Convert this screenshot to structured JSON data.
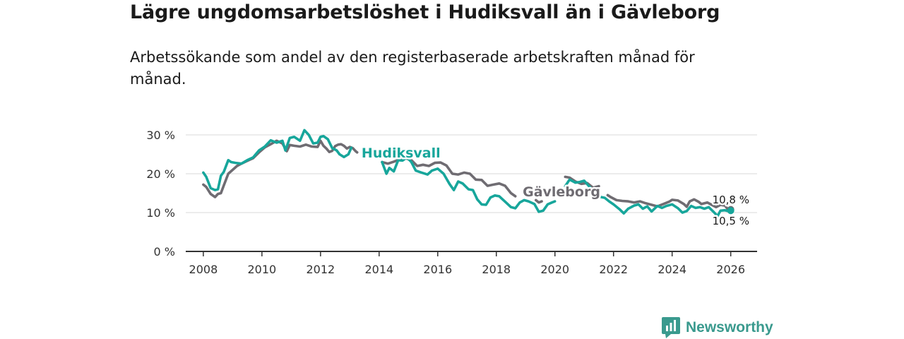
{
  "page": {
    "title": "Lägre ungdomsarbetslöshet i Hudiksvall än i Gävleborg",
    "subtitle": "Arbetssökande som andel av den registerbaserade arbetskraften månad för månad.",
    "brand": "Newsworthy"
  },
  "colors": {
    "hudiksvall": "#17a69b",
    "gavleborg": "#6f6c72",
    "grid": "#d9d9d9",
    "axis": "#333333"
  },
  "chart_data": {
    "type": "line",
    "title": "Lägre ungdomsarbetslöshet i Hudiksvall än i Gävleborg",
    "subtitle": "Arbetssökande som andel av den registerbaserade arbetskraften månad för månad.",
    "xlabel": "",
    "ylabel": "",
    "xlim": [
      2007.4,
      2026.9
    ],
    "ylim": [
      0,
      30
    ],
    "grid": "horizontal",
    "y_ticks": [
      {
        "value": 0,
        "label": "0 %"
      },
      {
        "value": 10,
        "label": "10 %"
      },
      {
        "value": 20,
        "label": "20 %"
      },
      {
        "value": 30,
        "label": "30 %"
      }
    ],
    "x_ticks": [
      {
        "value": 2008,
        "label": "2008"
      },
      {
        "value": 2010,
        "label": "2010"
      },
      {
        "value": 2012,
        "label": "2012"
      },
      {
        "value": 2014,
        "label": "2014"
      },
      {
        "value": 2016,
        "label": "2016"
      },
      {
        "value": 2018,
        "label": "2018"
      },
      {
        "value": 2020,
        "label": "2020"
      },
      {
        "value": 2022,
        "label": "2022"
      },
      {
        "value": 2024,
        "label": "2024"
      },
      {
        "value": 2026,
        "label": "2026"
      }
    ],
    "series": [
      {
        "name": "Gävleborg",
        "label": "Gävleborg",
        "end_label": "10,8 %",
        "segments": [
          [
            [
              2008.0,
              17.2
            ],
            [
              2008.1,
              16.6
            ],
            [
              2008.25,
              14.8
            ],
            [
              2008.4,
              14.0
            ],
            [
              2008.5,
              14.8
            ],
            [
              2008.6,
              15.0
            ],
            [
              2008.7,
              17.0
            ],
            [
              2008.85,
              20.0
            ],
            [
              2009.0,
              21.0
            ],
            [
              2009.15,
              22.0
            ],
            [
              2009.3,
              22.6
            ],
            [
              2009.5,
              23.3
            ],
            [
              2009.7,
              24.0
            ],
            [
              2009.9,
              25.5
            ],
            [
              2010.1,
              26.8
            ],
            [
              2010.3,
              27.6
            ],
            [
              2010.5,
              28.5
            ],
            [
              2010.7,
              27.8
            ],
            [
              2010.85,
              25.8
            ],
            [
              2010.95,
              27.4
            ],
            [
              2011.1,
              27.2
            ],
            [
              2011.3,
              27.0
            ],
            [
              2011.5,
              27.5
            ],
            [
              2011.7,
              27.0
            ],
            [
              2011.9,
              26.9
            ],
            [
              2012.0,
              28.5
            ],
            [
              2012.1,
              27.2
            ],
            [
              2012.2,
              26.5
            ],
            [
              2012.3,
              25.6
            ],
            [
              2012.4,
              25.9
            ],
            [
              2012.5,
              27.1
            ],
            [
              2012.6,
              27.5
            ],
            [
              2012.7,
              27.6
            ],
            [
              2012.8,
              27.2
            ],
            [
              2012.9,
              26.5
            ],
            [
              2013.0,
              26.9
            ],
            [
              2013.1,
              26.6
            ],
            [
              2013.2,
              25.8
            ],
            [
              2013.25,
              25.5
            ]
          ],
          [
            [
              2014.1,
              23.0
            ],
            [
              2014.3,
              22.6
            ],
            [
              2014.5,
              23.1
            ],
            [
              2014.7,
              23.7
            ],
            [
              2014.9,
              24.0
            ],
            [
              2015.1,
              23.5
            ],
            [
              2015.3,
              22.0
            ],
            [
              2015.5,
              22.3
            ],
            [
              2015.7,
              22.0
            ],
            [
              2015.9,
              22.8
            ],
            [
              2016.1,
              22.9
            ],
            [
              2016.3,
              22.1
            ],
            [
              2016.5,
              20.0
            ],
            [
              2016.7,
              19.8
            ],
            [
              2016.9,
              20.3
            ],
            [
              2017.1,
              20.0
            ],
            [
              2017.3,
              18.5
            ],
            [
              2017.5,
              18.4
            ],
            [
              2017.7,
              16.9
            ],
            [
              2017.9,
              17.2
            ],
            [
              2018.1,
              17.5
            ],
            [
              2018.3,
              16.9
            ],
            [
              2018.5,
              15.0
            ],
            [
              2018.65,
              14.2
            ]
          ],
          [
            [
              2019.35,
              13.2
            ],
            [
              2019.45,
              12.6
            ],
            [
              2019.55,
              12.9
            ]
          ],
          [
            [
              2020.35,
              19.2
            ],
            [
              2020.5,
              19.0
            ],
            [
              2020.7,
              18.0
            ],
            [
              2020.9,
              17.4
            ],
            [
              2021.1,
              17.6
            ],
            [
              2021.3,
              16.4
            ],
            [
              2021.5,
              16.8
            ]
          ],
          [
            [
              2021.8,
              14.5
            ],
            [
              2021.9,
              14.0
            ],
            [
              2022.1,
              13.2
            ],
            [
              2022.3,
              13.0
            ],
            [
              2022.5,
              12.9
            ],
            [
              2022.7,
              12.6
            ],
            [
              2022.9,
              12.9
            ],
            [
              2023.1,
              12.4
            ],
            [
              2023.3,
              12.0
            ],
            [
              2023.5,
              11.6
            ],
            [
              2023.7,
              12.2
            ],
            [
              2023.9,
              12.8
            ],
            [
              2024.0,
              13.3
            ],
            [
              2024.2,
              13.1
            ],
            [
              2024.4,
              12.2
            ],
            [
              2024.5,
              11.5
            ],
            [
              2024.6,
              12.9
            ],
            [
              2024.75,
              13.4
            ],
            [
              2024.9,
              12.8
            ],
            [
              2025.0,
              12.2
            ],
            [
              2025.2,
              12.6
            ],
            [
              2025.35,
              12.0
            ],
            [
              2025.5,
              11.4
            ],
            [
              2025.65,
              12.0
            ],
            [
              2025.8,
              11.8
            ],
            [
              2025.9,
              10.9
            ],
            [
              2026.0,
              10.8
            ]
          ]
        ]
      },
      {
        "name": "Hudiksvall",
        "label": "Hudiksvall",
        "end_label": "10,5 %",
        "segments": [
          [
            [
              2008.0,
              20.3
            ],
            [
              2008.1,
              19.2
            ],
            [
              2008.25,
              16.3
            ],
            [
              2008.4,
              15.8
            ],
            [
              2008.5,
              16.0
            ],
            [
              2008.6,
              19.5
            ],
            [
              2008.7,
              20.5
            ],
            [
              2008.85,
              23.5
            ],
            [
              2008.95,
              23.0
            ],
            [
              2009.1,
              22.8
            ],
            [
              2009.3,
              22.6
            ],
            [
              2009.5,
              23.5
            ],
            [
              2009.7,
              24.2
            ],
            [
              2009.9,
              26.0
            ],
            [
              2010.1,
              27.0
            ],
            [
              2010.3,
              28.6
            ],
            [
              2010.5,
              28.0
            ],
            [
              2010.7,
              28.5
            ],
            [
              2010.8,
              26.0
            ],
            [
              2010.95,
              29.2
            ],
            [
              2011.1,
              29.5
            ],
            [
              2011.3,
              28.5
            ],
            [
              2011.45,
              31.2
            ],
            [
              2011.6,
              30.0
            ],
            [
              2011.75,
              27.8
            ],
            [
              2011.9,
              28.0
            ],
            [
              2012.0,
              29.5
            ],
            [
              2012.1,
              29.7
            ],
            [
              2012.25,
              28.9
            ],
            [
              2012.4,
              26.6
            ],
            [
              2012.55,
              26.0
            ],
            [
              2012.65,
              25.0
            ],
            [
              2012.8,
              24.3
            ],
            [
              2012.95,
              25.0
            ],
            [
              2013.05,
              26.7
            ]
          ],
          [
            [
              2014.1,
              23.0
            ],
            [
              2014.25,
              20.0
            ],
            [
              2014.35,
              21.5
            ],
            [
              2014.5,
              20.6
            ],
            [
              2014.65,
              23.5
            ],
            [
              2014.8,
              23.4
            ],
            [
              2014.95,
              24.2
            ],
            [
              2015.1,
              23.0
            ],
            [
              2015.25,
              20.8
            ],
            [
              2015.45,
              20.3
            ],
            [
              2015.65,
              19.8
            ],
            [
              2015.8,
              20.8
            ],
            [
              2016.0,
              21.3
            ],
            [
              2016.2,
              20.0
            ],
            [
              2016.4,
              17.4
            ],
            [
              2016.55,
              15.8
            ],
            [
              2016.7,
              18.0
            ],
            [
              2016.85,
              17.5
            ],
            [
              2017.05,
              16.0
            ],
            [
              2017.2,
              15.8
            ],
            [
              2017.35,
              13.4
            ],
            [
              2017.5,
              12.1
            ],
            [
              2017.65,
              12.0
            ],
            [
              2017.8,
              13.9
            ],
            [
              2017.95,
              14.4
            ],
            [
              2018.1,
              14.2
            ],
            [
              2018.3,
              12.8
            ],
            [
              2018.5,
              11.4
            ],
            [
              2018.65,
              11.1
            ],
            [
              2018.8,
              12.6
            ],
            [
              2018.95,
              13.2
            ],
            [
              2019.1,
              12.9
            ],
            [
              2019.3,
              12.2
            ],
            [
              2019.45,
              10.2
            ],
            [
              2019.6,
              10.5
            ],
            [
              2019.75,
              12.1
            ],
            [
              2019.9,
              12.6
            ],
            [
              2020.0,
              12.9
            ]
          ],
          [
            [
              2020.35,
              16.8
            ],
            [
              2020.5,
              18.5
            ],
            [
              2020.7,
              17.7
            ],
            [
              2020.85,
              17.9
            ],
            [
              2021.0,
              18.2
            ],
            [
              2021.2,
              16.5
            ],
            [
              2021.35,
              15.0
            ],
            [
              2021.5,
              14.1
            ],
            [
              2021.7,
              13.8
            ],
            [
              2021.85,
              12.9
            ],
            [
              2022.0,
              12.1
            ],
            [
              2022.2,
              10.9
            ],
            [
              2022.35,
              9.8
            ],
            [
              2022.5,
              11.0
            ],
            [
              2022.7,
              11.8
            ],
            [
              2022.85,
              12.1
            ],
            [
              2023.0,
              11.0
            ],
            [
              2023.15,
              11.6
            ],
            [
              2023.3,
              10.3
            ],
            [
              2023.5,
              11.7
            ],
            [
              2023.65,
              11.2
            ],
            [
              2023.8,
              11.7
            ],
            [
              2024.0,
              12.1
            ],
            [
              2024.2,
              11.1
            ],
            [
              2024.35,
              10.0
            ],
            [
              2024.5,
              10.4
            ],
            [
              2024.65,
              11.7
            ],
            [
              2024.8,
              11.2
            ],
            [
              2024.95,
              11.4
            ],
            [
              2025.1,
              11.0
            ],
            [
              2025.25,
              11.4
            ],
            [
              2025.4,
              10.3
            ],
            [
              2025.55,
              9.1
            ],
            [
              2025.65,
              10.5
            ],
            [
              2025.8,
              10.6
            ],
            [
              2025.9,
              10.4
            ],
            [
              2026.0,
              10.5
            ]
          ]
        ]
      }
    ]
  }
}
